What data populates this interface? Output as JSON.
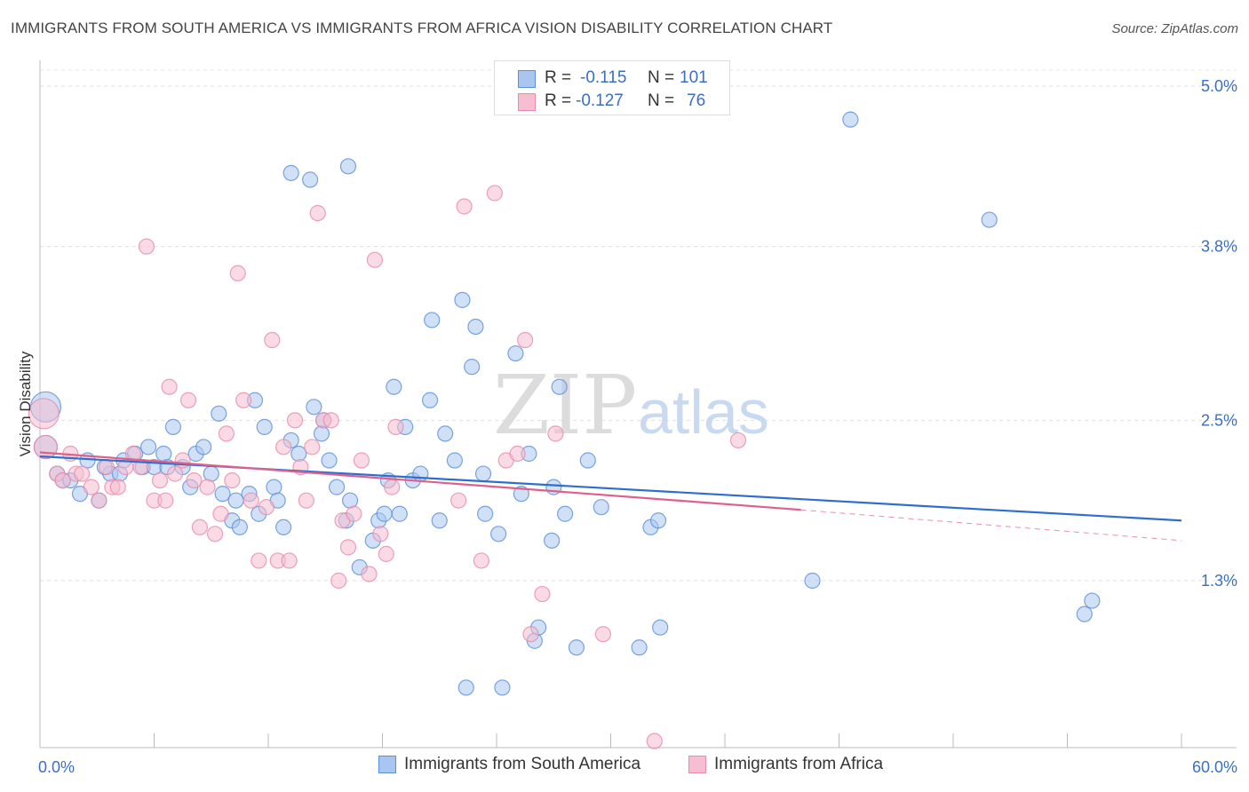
{
  "title": "IMMIGRANTS FROM SOUTH AMERICA VS IMMIGRANTS FROM AFRICA VISION DISABILITY CORRELATION CHART",
  "source": "Source: ZipAtlas.com",
  "watermark": {
    "zip": "ZIP",
    "atlas": "atlas"
  },
  "stats_legend": [
    {
      "r_label": "R =",
      "r_value": "-0.115",
      "n_label": "N =",
      "n_value": "101",
      "color": "#a9c6f0",
      "border": "#5b8fd8"
    },
    {
      "r_label": "R =",
      "r_value": "-0.127",
      "n_label": "N =",
      "n_value": "76",
      "color": "#f6bed0",
      "border": "#e88aaa"
    }
  ],
  "chart_data": {
    "type": "scatter",
    "ylabel": "Vision Disability",
    "xlim": [
      0,
      60
    ],
    "ylim": [
      0,
      5.3
    ],
    "x_ticks": [
      "0.0%",
      "60.0%"
    ],
    "y_ticks": [
      {
        "value": 1.3,
        "label": "1.3%"
      },
      {
        "value": 2.5,
        "label": "2.5%"
      },
      {
        "value": 3.8,
        "label": "3.8%"
      },
      {
        "value": 5.0,
        "label": "5.0%"
      }
    ],
    "grid": true,
    "series": [
      {
        "name": "Immigrants from South America",
        "color": "#a9c6f0",
        "stroke": "#5b8fd8",
        "trend": {
          "x0": 0,
          "y0": 2.23,
          "x1": 60,
          "y1": 1.75,
          "color": "#2f6fcc"
        },
        "points": [
          [
            0.3,
            2.6
          ],
          [
            0.3,
            2.3
          ],
          [
            0.9,
            2.1
          ],
          [
            1.2,
            2.05
          ],
          [
            1.6,
            2.05
          ],
          [
            2.1,
            1.95
          ],
          [
            2.5,
            2.2
          ],
          [
            3.1,
            1.9
          ],
          [
            3.7,
            2.1
          ],
          [
            3.4,
            2.15
          ],
          [
            4.2,
            2.1
          ],
          [
            4.4,
            2.2
          ],
          [
            5.0,
            2.25
          ],
          [
            5.4,
            2.15
          ],
          [
            5.7,
            2.3
          ],
          [
            6.0,
            2.15
          ],
          [
            6.5,
            2.25
          ],
          [
            6.7,
            2.15
          ],
          [
            7.0,
            2.45
          ],
          [
            7.5,
            2.15
          ],
          [
            7.9,
            2.0
          ],
          [
            8.2,
            2.25
          ],
          [
            8.6,
            2.3
          ],
          [
            9.0,
            2.1
          ],
          [
            9.4,
            2.55
          ],
          [
            9.6,
            1.95
          ],
          [
            10.1,
            1.75
          ],
          [
            10.3,
            1.9
          ],
          [
            10.5,
            1.7
          ],
          [
            11.0,
            1.95
          ],
          [
            11.3,
            2.65
          ],
          [
            11.5,
            1.8
          ],
          [
            11.8,
            2.45
          ],
          [
            12.3,
            2.0
          ],
          [
            12.5,
            1.9
          ],
          [
            12.8,
            1.7
          ],
          [
            13.2,
            2.35
          ],
          [
            13.6,
            2.25
          ],
          [
            13.2,
            4.35
          ],
          [
            14.2,
            4.3
          ],
          [
            14.4,
            2.6
          ],
          [
            14.9,
            2.5
          ],
          [
            14.8,
            2.4
          ],
          [
            15.2,
            2.2
          ],
          [
            15.6,
            2.0
          ],
          [
            16.1,
            1.75
          ],
          [
            16.3,
            1.9
          ],
          [
            16.2,
            4.4
          ],
          [
            16.8,
            1.4
          ],
          [
            17.5,
            1.6
          ],
          [
            17.8,
            1.75
          ],
          [
            18.1,
            1.8
          ],
          [
            18.3,
            2.05
          ],
          [
            18.6,
            2.75
          ],
          [
            18.9,
            1.8
          ],
          [
            19.2,
            2.45
          ],
          [
            19.6,
            2.05
          ],
          [
            20.0,
            2.1
          ],
          [
            20.5,
            2.65
          ],
          [
            20.6,
            3.25
          ],
          [
            21.0,
            1.75
          ],
          [
            21.3,
            2.4
          ],
          [
            21.8,
            2.2
          ],
          [
            22.2,
            3.4
          ],
          [
            22.7,
            2.9
          ],
          [
            22.4,
            0.5
          ],
          [
            22.9,
            3.2
          ],
          [
            23.3,
            2.1
          ],
          [
            23.4,
            1.8
          ],
          [
            24.1,
            1.65
          ],
          [
            24.3,
            0.5
          ],
          [
            25.0,
            3.0
          ],
          [
            25.3,
            1.95
          ],
          [
            25.7,
            2.25
          ],
          [
            26.0,
            0.85
          ],
          [
            26.2,
            0.95
          ],
          [
            26.9,
            1.6
          ],
          [
            27.0,
            2.0
          ],
          [
            27.3,
            2.75
          ],
          [
            27.6,
            1.8
          ],
          [
            28.2,
            0.8
          ],
          [
            28.8,
            2.2
          ],
          [
            29.5,
            1.85
          ],
          [
            32.1,
            1.7
          ],
          [
            32.5,
            1.75
          ],
          [
            31.5,
            0.8
          ],
          [
            32.6,
            0.95
          ],
          [
            40.6,
            1.3
          ],
          [
            42.6,
            4.75
          ],
          [
            49.9,
            4.0
          ],
          [
            54.9,
            1.05
          ],
          [
            55.3,
            1.15
          ]
        ]
      },
      {
        "name": "Immigrants from Africa",
        "color": "#f6bed0",
        "stroke": "#e88aaa",
        "trend": {
          "x0": 0,
          "y0": 2.26,
          "x1": 40,
          "y1": 1.83,
          "color": "#e0608a",
          "dash_x1": 60,
          "dash_y1": 1.6
        },
        "points": [
          [
            0.2,
            2.55
          ],
          [
            0.3,
            2.3
          ],
          [
            0.9,
            2.1
          ],
          [
            1.2,
            2.05
          ],
          [
            1.6,
            2.25
          ],
          [
            1.9,
            2.1
          ],
          [
            2.2,
            2.1
          ],
          [
            2.7,
            2.0
          ],
          [
            3.1,
            1.9
          ],
          [
            3.5,
            2.15
          ],
          [
            3.8,
            2.0
          ],
          [
            4.1,
            2.0
          ],
          [
            4.5,
            2.15
          ],
          [
            4.9,
            2.25
          ],
          [
            5.3,
            2.15
          ],
          [
            5.6,
            3.8
          ],
          [
            6.0,
            1.9
          ],
          [
            6.3,
            2.05
          ],
          [
            6.6,
            1.9
          ],
          [
            6.8,
            2.75
          ],
          [
            7.1,
            2.1
          ],
          [
            7.5,
            2.2
          ],
          [
            7.8,
            2.65
          ],
          [
            8.1,
            2.05
          ],
          [
            8.4,
            1.7
          ],
          [
            8.8,
            2.0
          ],
          [
            9.2,
            1.65
          ],
          [
            9.5,
            1.8
          ],
          [
            9.8,
            2.4
          ],
          [
            10.1,
            2.05
          ],
          [
            10.4,
            3.6
          ],
          [
            10.7,
            2.65
          ],
          [
            11.1,
            1.9
          ],
          [
            11.5,
            1.45
          ],
          [
            11.9,
            1.85
          ],
          [
            12.2,
            3.1
          ],
          [
            12.5,
            1.45
          ],
          [
            12.8,
            2.3
          ],
          [
            13.1,
            1.45
          ],
          [
            13.4,
            2.5
          ],
          [
            13.7,
            2.15
          ],
          [
            14.0,
            1.9
          ],
          [
            14.3,
            2.3
          ],
          [
            14.6,
            4.05
          ],
          [
            14.9,
            2.5
          ],
          [
            15.3,
            2.5
          ],
          [
            15.7,
            1.3
          ],
          [
            15.9,
            1.75
          ],
          [
            16.2,
            1.55
          ],
          [
            16.5,
            1.8
          ],
          [
            16.9,
            2.2
          ],
          [
            17.3,
            1.35
          ],
          [
            17.6,
            3.7
          ],
          [
            17.9,
            1.65
          ],
          [
            18.2,
            1.5
          ],
          [
            18.5,
            2.0
          ],
          [
            18.7,
            2.45
          ],
          [
            22.0,
            1.9
          ],
          [
            22.3,
            4.1
          ],
          [
            23.2,
            1.45
          ],
          [
            23.9,
            4.2
          ],
          [
            24.5,
            2.2
          ],
          [
            25.1,
            2.25
          ],
          [
            25.5,
            3.1
          ],
          [
            25.8,
            0.9
          ],
          [
            26.4,
            1.2
          ],
          [
            27.1,
            2.4
          ],
          [
            29.6,
            0.9
          ],
          [
            32.3,
            0.1
          ],
          [
            36.7,
            2.35
          ]
        ]
      }
    ]
  }
}
